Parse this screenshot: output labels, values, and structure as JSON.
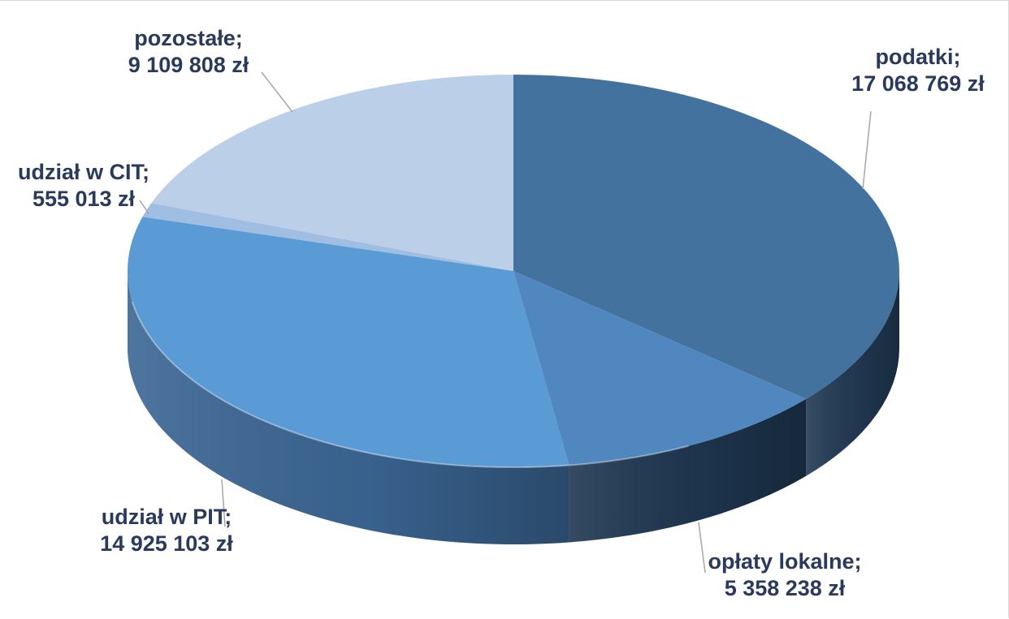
{
  "chart_data": {
    "type": "pie",
    "style": "3d",
    "categories": [
      "podatki",
      "opłaty lokalne",
      "udział w PIT",
      "udział w CIT",
      "pozostałe"
    ],
    "values": [
      17068769,
      5358238,
      14925103,
      555013,
      9109808
    ],
    "unit": "zł",
    "data_labels": [
      {
        "name": "podatki;",
        "value": "17 068 769 zł"
      },
      {
        "name": "opłaty lokalne;",
        "value": "5 358 238 zł"
      },
      {
        "name": "udział w PIT;",
        "value": "14 925 103 zł"
      },
      {
        "name": "udział w CIT;",
        "value": "555 013 zł"
      },
      {
        "name": "pozostałe;",
        "value": "9 109 808 zł"
      }
    ],
    "colors": [
      "#44729f",
      "#5087bf",
      "#5b9bd5",
      "#a0bee2",
      "#bbcfe8"
    ],
    "side_colors": [
      "#223a54",
      "#1f3751",
      "#3b6694",
      "#6d8fb8",
      "#8aa7cc"
    ],
    "label_color": "#2a3a5c",
    "leader_line_color": "#a6a6a6"
  }
}
